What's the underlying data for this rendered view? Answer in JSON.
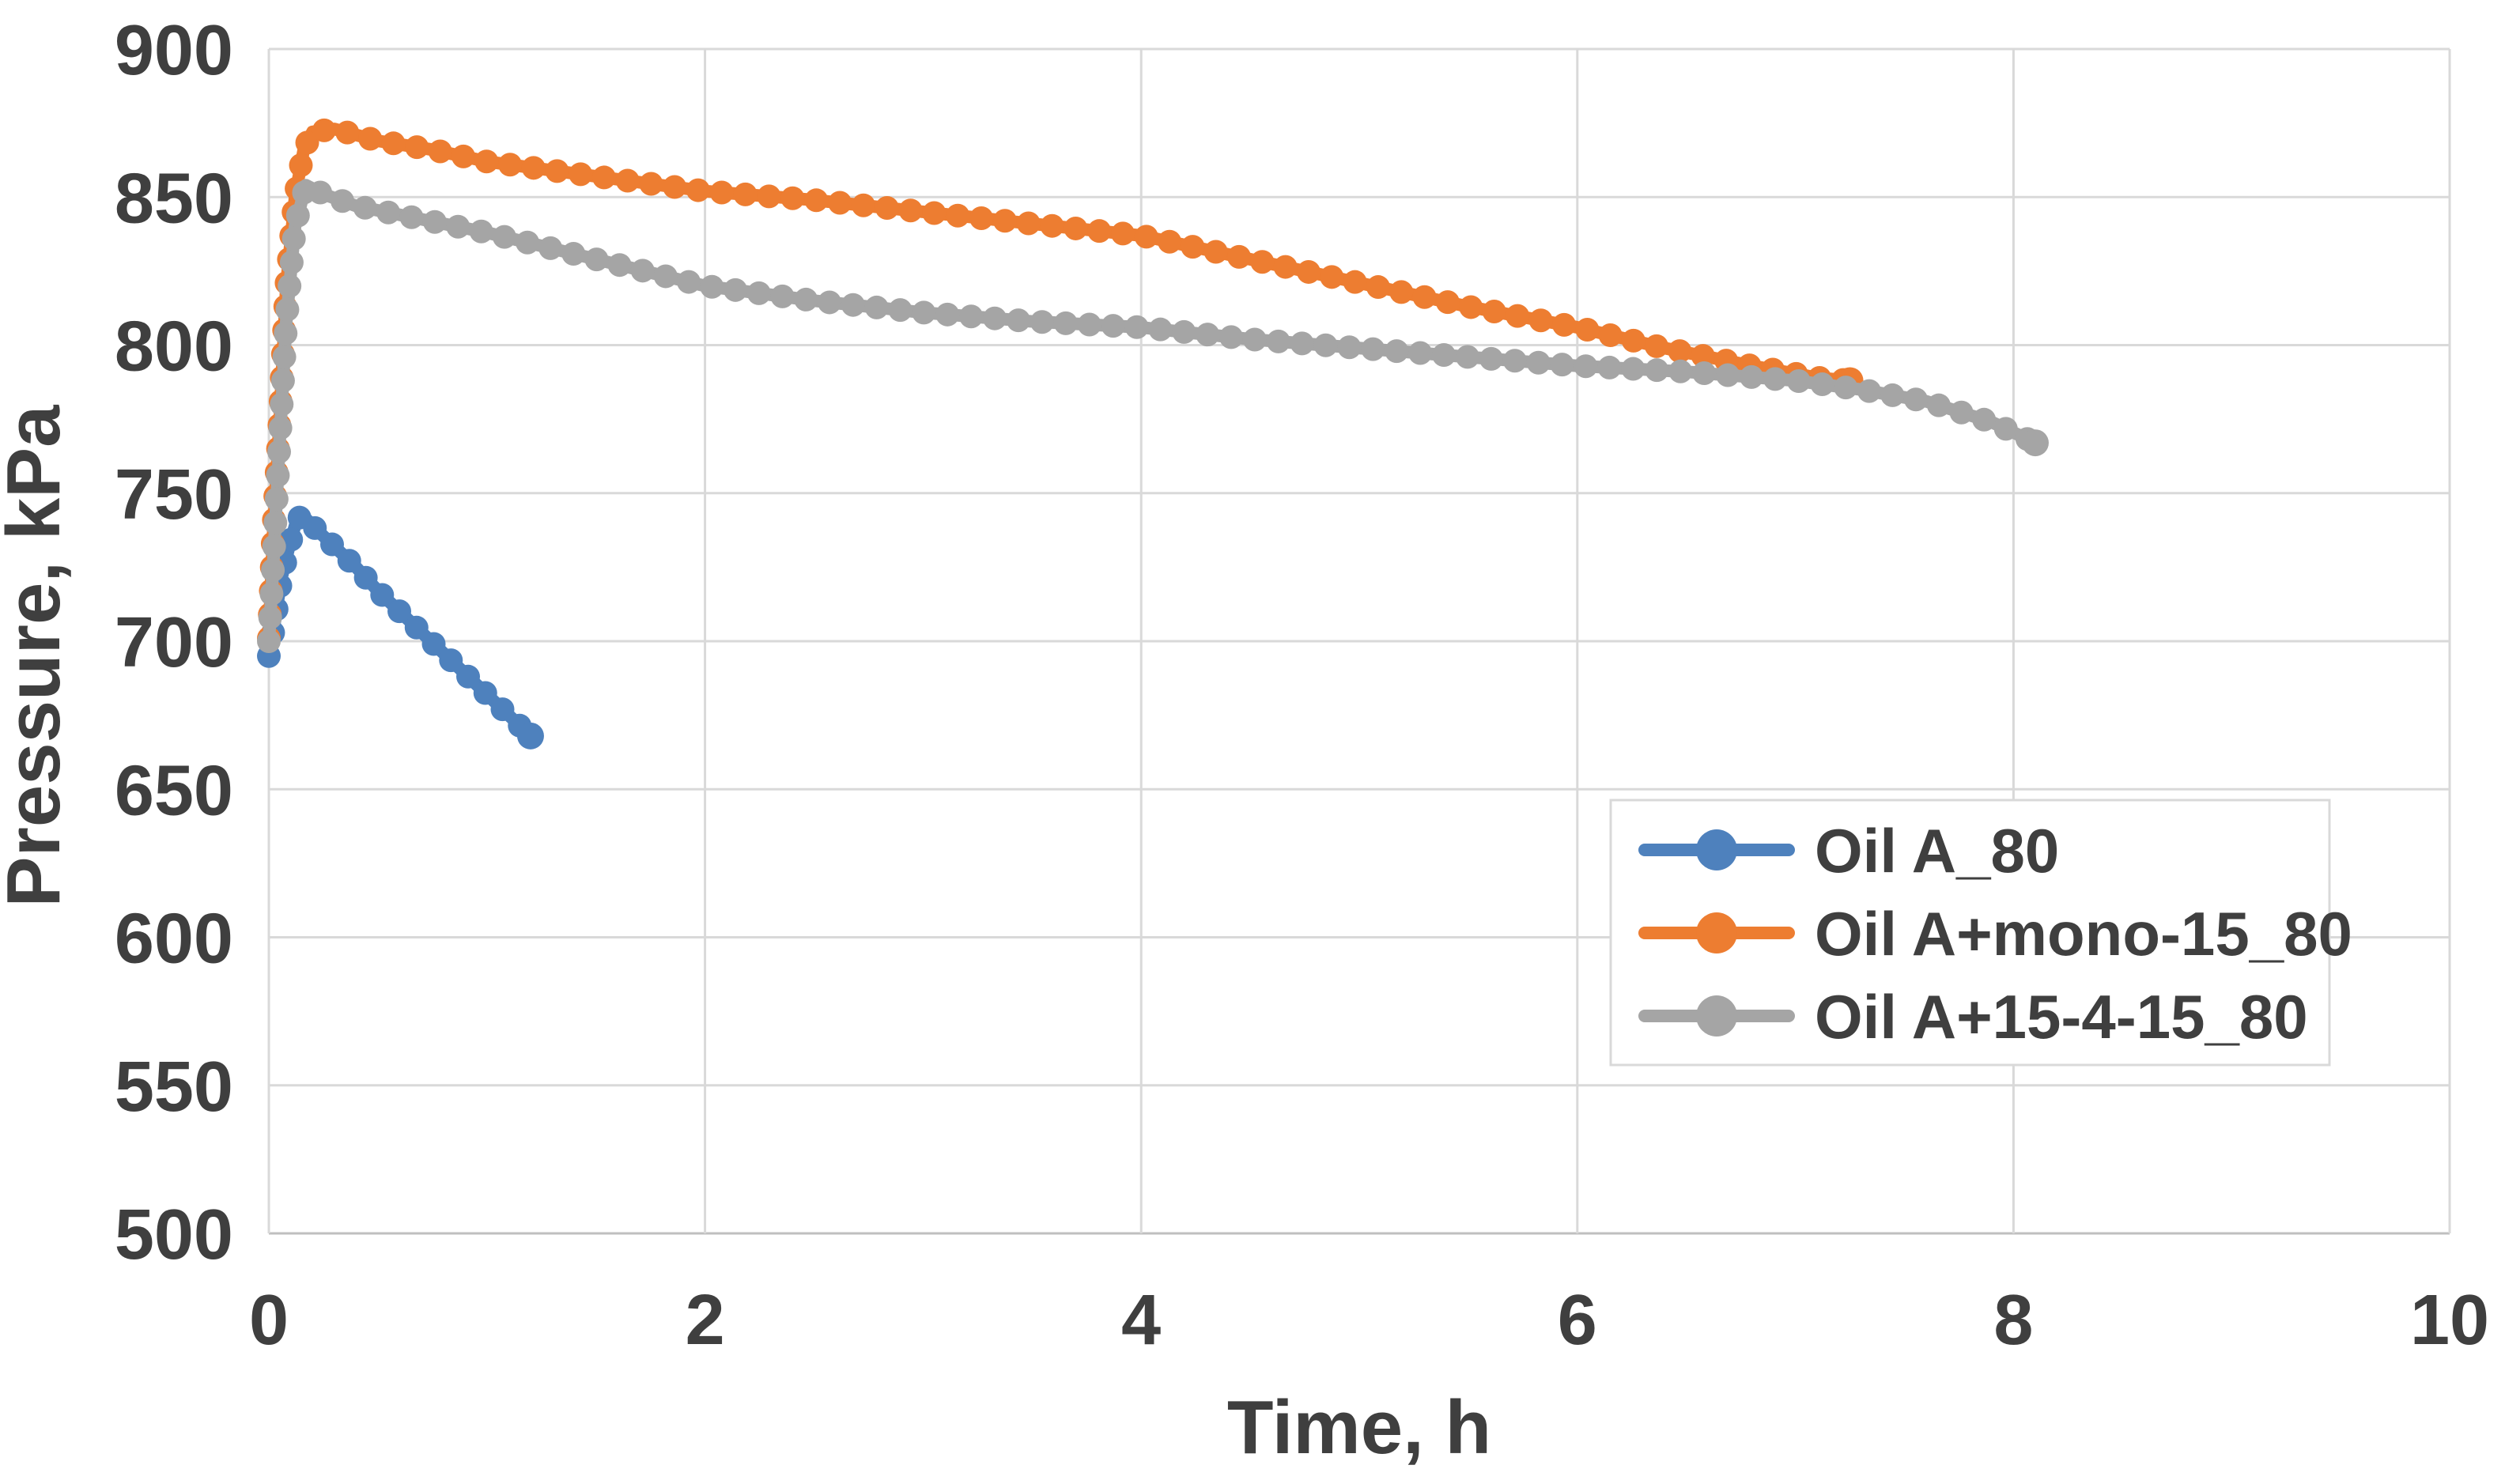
{
  "chart_data": {
    "type": "line",
    "title": "",
    "xlabel": "Time, h",
    "ylabel": "Pressure, kPa",
    "xlim": [
      0,
      10
    ],
    "ylim": [
      500,
      900
    ],
    "x_ticks": [
      "0",
      "2",
      "4",
      "6",
      "8",
      "10"
    ],
    "y_ticks": [
      "500",
      "550",
      "600",
      "650",
      "700",
      "750",
      "800",
      "850",
      "900"
    ],
    "grid": {
      "horizontal": true,
      "vertical": true,
      "color": "#d9d9d9"
    },
    "legend_position": "inside-lower-right",
    "marker_style": "circle",
    "series": [
      {
        "name": "Oil A_80",
        "color": "#4e81bd",
        "points": [
          [
            0.0,
            695
          ],
          [
            0.02,
            703
          ],
          [
            0.04,
            713
          ],
          [
            0.06,
            722
          ],
          [
            0.09,
            731
          ],
          [
            0.12,
            739
          ],
          [
            0.15,
            743
          ],
          [
            0.2,
            739
          ],
          [
            0.3,
            732
          ],
          [
            0.4,
            725
          ],
          [
            0.5,
            717
          ],
          [
            0.6,
            710
          ],
          [
            0.7,
            703
          ],
          [
            0.8,
            696
          ],
          [
            0.9,
            689
          ],
          [
            1.0,
            682
          ],
          [
            1.1,
            675
          ],
          [
            1.2,
            668
          ]
        ]
      },
      {
        "name": "Oil A+mono-15_80",
        "color": "#ed7d31",
        "points": [
          [
            0.0,
            701
          ],
          [
            0.02,
            737
          ],
          [
            0.05,
            775
          ],
          [
            0.08,
            820
          ],
          [
            0.12,
            850
          ],
          [
            0.16,
            866
          ],
          [
            0.2,
            872
          ],
          [
            0.3,
            873
          ],
          [
            0.5,
            869
          ],
          [
            0.75,
            866
          ],
          [
            1.0,
            862
          ],
          [
            1.5,
            857
          ],
          [
            2.0,
            852
          ],
          [
            2.5,
            849
          ],
          [
            3.0,
            845
          ],
          [
            3.5,
            841
          ],
          [
            4.0,
            837
          ],
          [
            4.5,
            829
          ],
          [
            5.0,
            821
          ],
          [
            5.5,
            813
          ],
          [
            6.0,
            806
          ],
          [
            6.4,
            799
          ],
          [
            6.8,
            793
          ],
          [
            7.1,
            789
          ],
          [
            7.25,
            788
          ]
        ]
      },
      {
        "name": "Oil A+15-4-15_80",
        "color": "#a5a5a5",
        "points": [
          [
            0.0,
            700
          ],
          [
            0.02,
            726
          ],
          [
            0.05,
            768
          ],
          [
            0.08,
            808
          ],
          [
            0.12,
            840
          ],
          [
            0.17,
            854
          ],
          [
            0.25,
            851
          ],
          [
            0.4,
            847
          ],
          [
            0.6,
            844
          ],
          [
            0.8,
            841
          ],
          [
            1.0,
            838
          ],
          [
            1.5,
            829
          ],
          [
            2.0,
            820
          ],
          [
            2.5,
            815
          ],
          [
            3.0,
            811
          ],
          [
            3.5,
            808
          ],
          [
            4.0,
            806
          ],
          [
            4.5,
            802
          ],
          [
            5.0,
            799
          ],
          [
            5.5,
            796
          ],
          [
            6.0,
            793
          ],
          [
            6.5,
            791
          ],
          [
            7.0,
            788
          ],
          [
            7.3,
            785
          ],
          [
            7.6,
            781
          ],
          [
            7.9,
            774
          ],
          [
            8.1,
            767
          ]
        ]
      }
    ]
  },
  "colors": {
    "background": "#ffffff",
    "gridline": "#d9d9d9",
    "axis_line": "#bfbfbf",
    "text": "#3f3f3f",
    "legend_border": "#d9d9d9",
    "legend_fill": "#ffffff"
  }
}
